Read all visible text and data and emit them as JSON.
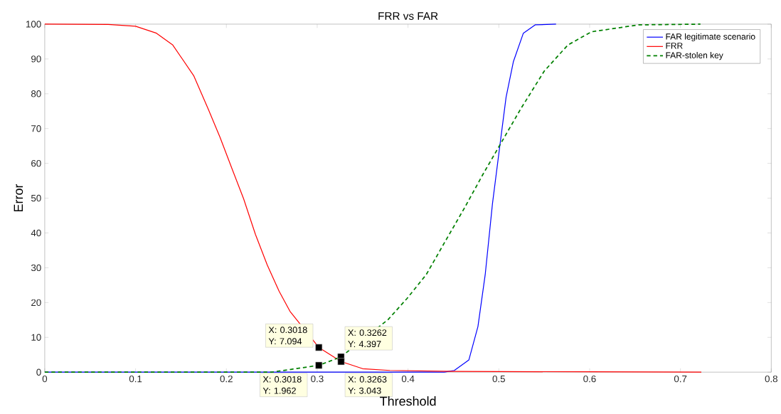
{
  "chart_data": {
    "type": "line",
    "title": "FRR vs FAR",
    "xlabel": "Threshold",
    "ylabel": "Error",
    "xlim": [
      0,
      0.8
    ],
    "ylim": [
      0,
      100
    ],
    "xticks": [
      0,
      0.1,
      0.2,
      0.3,
      0.4,
      0.5,
      0.6,
      0.7,
      0.8
    ],
    "yticks": [
      0,
      10,
      20,
      30,
      40,
      50,
      60,
      70,
      80,
      90,
      100
    ],
    "legend": "top right",
    "grid": false,
    "series": [
      {
        "name": "FAR legitimate scenario",
        "color": "#0000ff",
        "line_style": "solid",
        "x": [
          0,
          0.2,
          0.4,
          0.44,
          0.451,
          0.467,
          0.477,
          0.485,
          0.493,
          0.501,
          0.508,
          0.516,
          0.527,
          0.54,
          0.563
        ],
        "values": [
          0,
          0,
          0,
          0,
          0.5,
          3.5,
          13.1,
          28,
          48.4,
          64.8,
          79,
          89.2,
          97.4,
          99.8,
          100
        ]
      },
      {
        "name": "FRR",
        "color": "#ff0000",
        "line_style": "solid",
        "x": [
          0,
          0.07,
          0.1,
          0.123,
          0.141,
          0.164,
          0.18,
          0.193,
          0.206,
          0.219,
          0.232,
          0.245,
          0.258,
          0.27,
          0.3018,
          0.3263,
          0.35,
          0.38,
          0.45,
          0.6,
          0.723
        ],
        "values": [
          100,
          99.9,
          99.4,
          97.4,
          94,
          85.2,
          75.6,
          67.5,
          58.6,
          49.8,
          39.6,
          30.8,
          23.3,
          17.5,
          7.094,
          3.043,
          1,
          0.5,
          0.2,
          0.1,
          0
        ]
      },
      {
        "name": "FAR-stolen key",
        "color": "#008000",
        "line_style": "dashed",
        "x": [
          0,
          0.25,
          0.271,
          0.3018,
          0.3262,
          0.378,
          0.399,
          0.42,
          0.441,
          0.462,
          0.482,
          0.503,
          0.524,
          0.55,
          0.576,
          0.602,
          0.654,
          0.722
        ],
        "values": [
          0,
          0,
          0.8,
          1.962,
          4.397,
          15.1,
          21.2,
          28,
          37.6,
          47.1,
          56.6,
          66.1,
          75.6,
          86.5,
          94,
          97.8,
          99.8,
          100
        ]
      }
    ],
    "annotations": [
      {
        "text": "X: 0.3018 Y: 7.094",
        "x": 0.3018,
        "y": 7.094
      },
      {
        "text": "X: 0.3018 Y: 1.962",
        "x": 0.3018,
        "y": 1.962
      },
      {
        "text": "X: 0.3262 Y: 4.397",
        "x": 0.3262,
        "y": 4.397
      },
      {
        "text": "X: 0.3263 Y: 3.043",
        "x": 0.3263,
        "y": 3.043
      }
    ]
  }
}
